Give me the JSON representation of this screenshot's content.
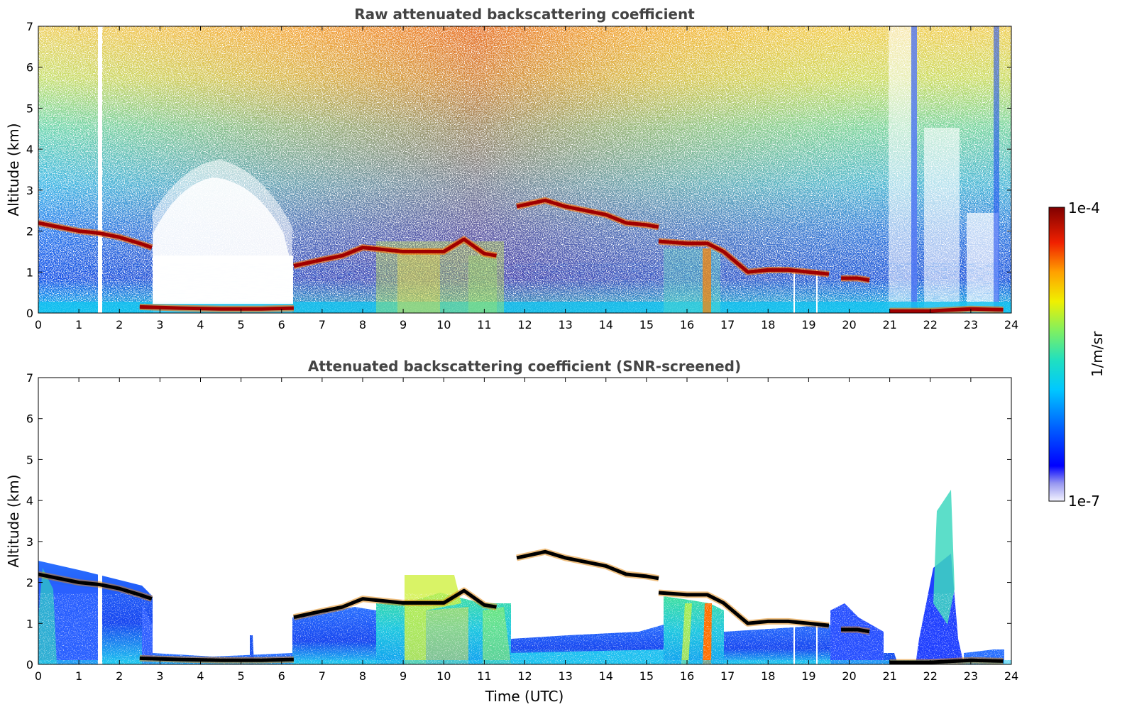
{
  "chart_data": [
    {
      "type": "heatmap",
      "title": "Raw attenuated backscattering coefficient",
      "xlabel": "",
      "ylabel": "Altitude (km)",
      "xlim": [
        0,
        24
      ],
      "ylim": [
        0,
        7
      ],
      "xticks": [
        0,
        1,
        2,
        3,
        4,
        5,
        6,
        7,
        8,
        9,
        10,
        11,
        12,
        13,
        14,
        15,
        16,
        17,
        18,
        19,
        20,
        21,
        22,
        23,
        24
      ],
      "yticks": [
        0,
        1,
        2,
        3,
        4,
        5,
        6,
        7
      ],
      "data_gaps_hours": [
        1.5
      ],
      "layers": [
        {
          "feature": "cloud-base",
          "time": [
            0.0,
            0.5,
            1.0,
            1.5,
            2.0,
            2.5,
            2.8
          ],
          "altitude": [
            2.2,
            2.1,
            2.0,
            1.95,
            1.85,
            1.7,
            1.6
          ]
        },
        {
          "feature": "low-cloud",
          "time": [
            2.5,
            3.5,
            4.5,
            5.5,
            6.3
          ],
          "altitude": [
            0.15,
            0.12,
            0.1,
            0.1,
            0.12
          ]
        },
        {
          "feature": "cloud-base",
          "time": [
            6.3,
            7.0,
            7.5,
            8.0,
            8.5,
            9.0,
            10.0,
            10.5,
            11.0,
            11.3
          ],
          "altitude": [
            1.15,
            1.3,
            1.4,
            1.6,
            1.55,
            1.5,
            1.5,
            1.8,
            1.45,
            1.4
          ]
        },
        {
          "feature": "cloud-base",
          "time": [
            11.8,
            12.5,
            13.0,
            13.5,
            14.0,
            14.5,
            15.0,
            15.3
          ],
          "altitude": [
            2.6,
            2.75,
            2.6,
            2.5,
            2.4,
            2.2,
            2.15,
            2.1
          ]
        },
        {
          "feature": "cloud-base",
          "time": [
            15.3,
            16.0,
            16.5,
            16.9,
            17.5,
            18.0,
            18.5,
            19.0,
            19.5
          ],
          "altitude": [
            1.75,
            1.7,
            1.7,
            1.5,
            1.0,
            1.05,
            1.05,
            1.0,
            0.95
          ]
        },
        {
          "feature": "cloud-base",
          "time": [
            19.8,
            20.2,
            20.5
          ],
          "altitude": [
            0.85,
            0.85,
            0.8
          ]
        },
        {
          "feature": "low-cloud",
          "time": [
            21.0,
            22.0,
            23.0,
            23.8
          ],
          "altitude": [
            0.05,
            0.05,
            0.1,
            0.08
          ]
        }
      ]
    },
    {
      "type": "heatmap",
      "title": "Attenuated backscattering coefficient (SNR-screened)",
      "xlabel": "Time (UTC)",
      "ylabel": "Altitude (km)",
      "xlim": [
        0,
        24
      ],
      "ylim": [
        0,
        7
      ],
      "xticks": [
        0,
        1,
        2,
        3,
        4,
        5,
        6,
        7,
        8,
        9,
        10,
        11,
        12,
        13,
        14,
        15,
        16,
        17,
        18,
        19,
        20,
        21,
        22,
        23,
        24
      ],
      "yticks": [
        0,
        1,
        2,
        3,
        4,
        5,
        6,
        7
      ]
    }
  ],
  "colorbar": {
    "label": "1/m/sr",
    "max_label": "1e-4",
    "min_label": "1e-7",
    "scale": "log",
    "colormap": [
      "#ffffff",
      "#c8c8f0",
      "#0000ff",
      "#00a0ff",
      "#00e0e0",
      "#80ff80",
      "#ffff00",
      "#ff8000",
      "#e00000",
      "#800000"
    ]
  }
}
